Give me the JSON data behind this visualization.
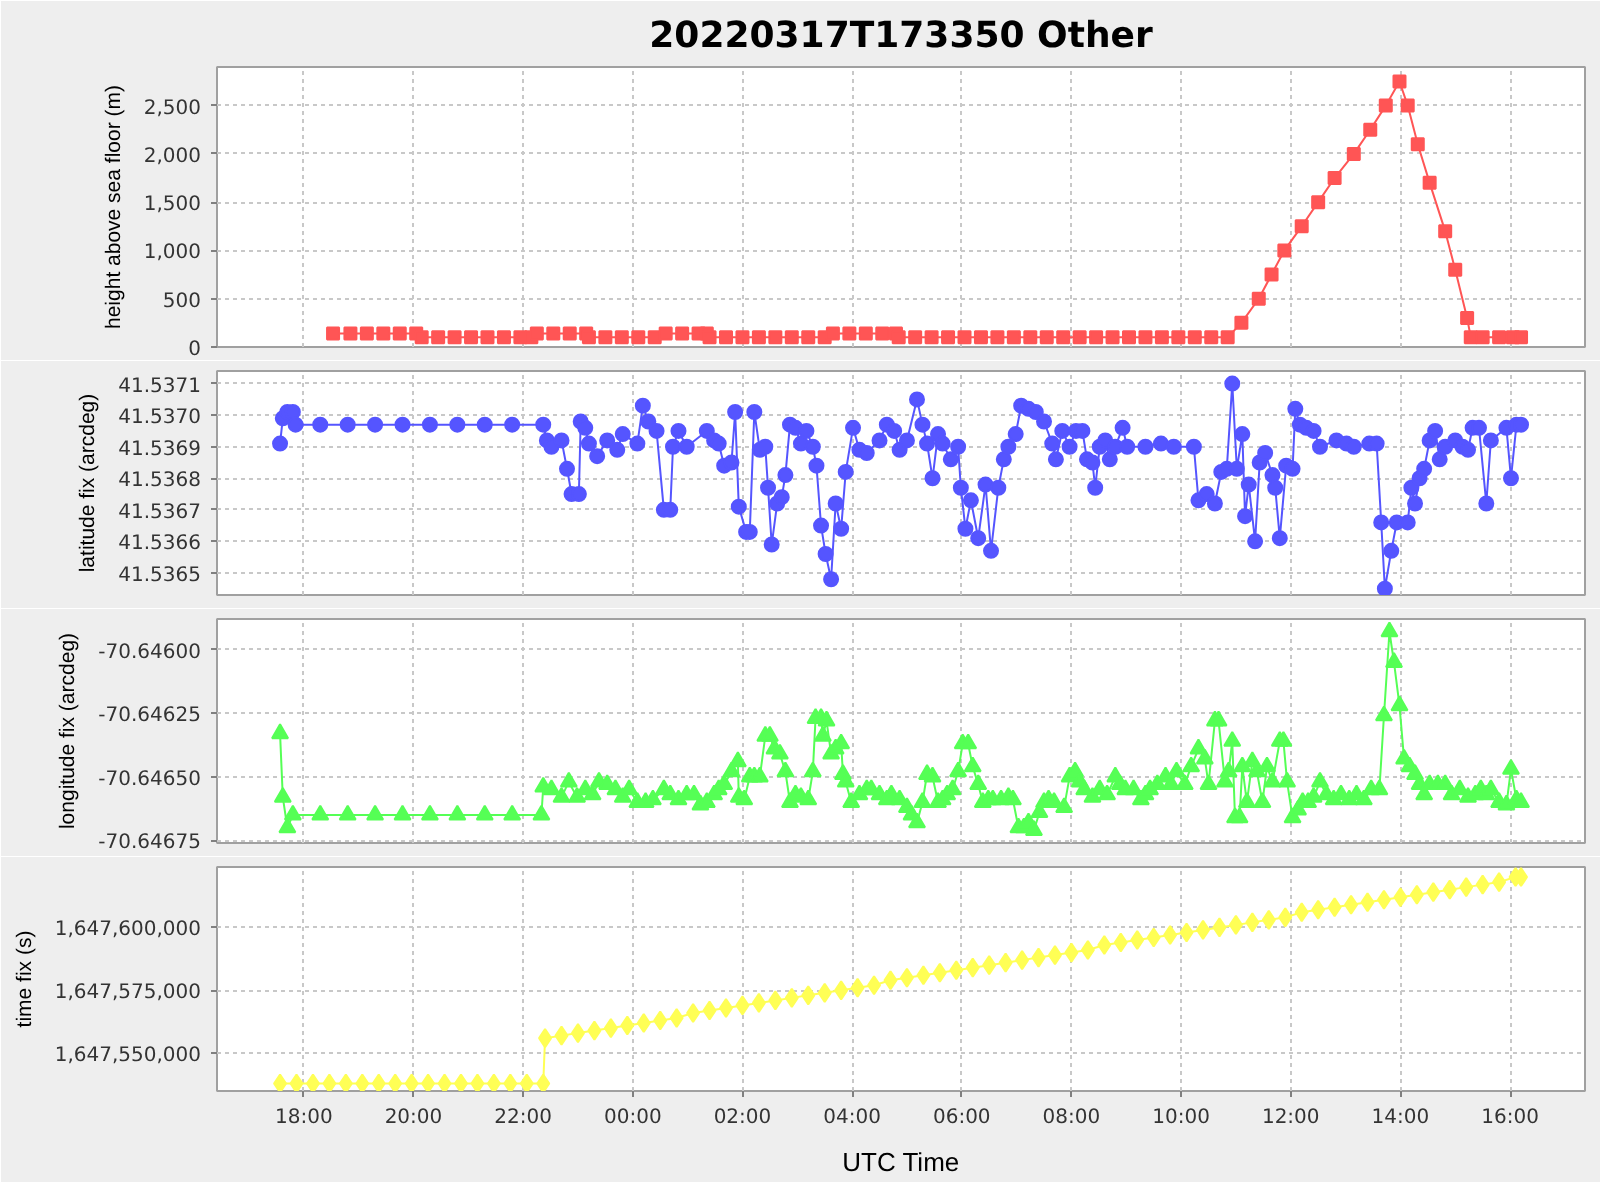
{
  "chart_data": [
    {
      "type": "line",
      "title": "20220317T173350 Other",
      "ylabel": "height above sea floor (m)",
      "tick_labels": "y",
      "grid": true,
      "marker": "square",
      "line_style": "solid",
      "xlim": [
        "2022-03-17T16:25",
        "2022-03-18T17:22"
      ],
      "xticks": [
        {
          "value": "2022-03-17T18:00",
          "label": null
        },
        {
          "value": "2022-03-17T20:00",
          "label": null
        },
        {
          "value": "2022-03-17T22:00",
          "label": null
        },
        {
          "value": "2022-03-18T00:00",
          "label": null
        },
        {
          "value": "2022-03-18T02:00",
          "label": null
        },
        {
          "value": "2022-03-18T04:00",
          "label": null
        },
        {
          "value": "2022-03-18T06:00",
          "label": null
        },
        {
          "value": "2022-03-18T08:00",
          "label": null
        },
        {
          "value": "2022-03-18T10:00",
          "label": null
        },
        {
          "value": "2022-03-18T12:00",
          "label": null
        },
        {
          "value": "2022-03-18T14:00",
          "label": null
        },
        {
          "value": "2022-03-18T16:00",
          "label": null
        }
      ],
      "ylim": [
        0,
        2900
      ],
      "yticks": [
        0,
        500,
        {
          "value": 1000,
          "label": "1,000"
        },
        {
          "value": 1500,
          "label": "1,500"
        },
        {
          "value": 2000,
          "label": "2,000"
        },
        {
          "value": 2500,
          "label": "2,500"
        }
      ],
      "x": [
        "2022-03-17T18:32",
        "2022-03-17T18:51",
        "2022-03-17T19:09",
        "2022-03-17T19:27",
        "2022-03-17T19:45",
        "2022-03-17T20:03",
        "2022-03-17T20:09",
        "2022-03-17T20:27",
        "2022-03-17T20:45",
        "2022-03-17T21:03",
        "2022-03-17T21:21",
        "2022-03-17T21:39",
        "2022-03-17T21:57",
        "2022-03-17T22:09",
        "2022-03-17T22:15",
        "2022-03-17T22:33",
        "2022-03-17T22:51",
        "2022-03-17T23:09",
        "2022-03-17T23:12",
        "2022-03-17T23:30",
        "2022-03-17T23:48",
        "2022-03-18T00:06",
        "2022-03-18T00:24",
        "2022-03-18T00:36",
        "2022-03-18T00:54",
        "2022-03-18T01:12",
        "2022-03-18T01:21",
        "2022-03-18T01:24",
        "2022-03-18T01:42",
        "2022-03-18T02:00",
        "2022-03-18T02:18",
        "2022-03-18T02:36",
        "2022-03-18T02:54",
        "2022-03-18T03:12",
        "2022-03-18T03:30",
        "2022-03-18T03:39",
        "2022-03-18T03:57",
        "2022-03-18T04:15",
        "2022-03-18T04:33",
        "2022-03-18T04:48",
        "2022-03-18T04:51",
        "2022-03-18T05:09",
        "2022-03-18T05:27",
        "2022-03-18T05:45",
        "2022-03-18T06:03",
        "2022-03-18T06:21",
        "2022-03-18T06:39",
        "2022-03-18T06:57",
        "2022-03-18T07:15",
        "2022-03-18T07:33",
        "2022-03-18T07:51",
        "2022-03-18T08:09",
        "2022-03-18T08:27",
        "2022-03-18T08:45",
        "2022-03-18T09:03",
        "2022-03-18T09:21",
        "2022-03-18T09:39",
        "2022-03-18T09:57",
        "2022-03-18T10:15",
        "2022-03-18T10:33",
        "2022-03-18T10:51",
        "2022-03-18T11:06",
        "2022-03-18T11:25",
        "2022-03-18T11:39",
        "2022-03-18T11:53",
        "2022-03-18T12:12",
        "2022-03-18T12:30",
        "2022-03-18T12:48",
        "2022-03-18T13:09",
        "2022-03-18T13:27",
        "2022-03-18T13:44",
        "2022-03-18T13:59",
        "2022-03-18T14:08",
        "2022-03-18T14:19",
        "2022-03-18T14:32",
        "2022-03-18T14:49",
        "2022-03-18T15:00",
        "2022-03-18T15:13",
        "2022-03-18T15:17",
        "2022-03-18T15:30",
        "2022-03-18T15:48",
        "2022-03-18T16:03",
        "2022-03-18T16:12"
      ],
      "series": [
        {
          "color": "#ff5555",
          "values": [
            140,
            140,
            140,
            140,
            140,
            140,
            100,
            100,
            100,
            100,
            100,
            100,
            100,
            100,
            140,
            140,
            140,
            140,
            100,
            100,
            100,
            100,
            100,
            140,
            140,
            140,
            140,
            100,
            100,
            100,
            100,
            100,
            100,
            100,
            100,
            140,
            140,
            140,
            140,
            140,
            100,
            100,
            100,
            100,
            100,
            100,
            100,
            100,
            100,
            100,
            100,
            100,
            100,
            100,
            100,
            100,
            100,
            100,
            100,
            100,
            100,
            250,
            500,
            750,
            1000,
            1250,
            1500,
            1750,
            2000,
            2250,
            2500,
            2750,
            2500,
            2100,
            1700,
            1200,
            800,
            300,
            100,
            100,
            100,
            100,
            100
          ]
        }
      ]
    },
    {
      "type": "line",
      "ylabel": "latitude fix (arcdeg)",
      "tick_labels": "y",
      "grid": true,
      "marker": "circle",
      "line_style": "solid",
      "xlim": [
        "2022-03-17T16:25",
        "2022-03-18T17:22"
      ],
      "xticks": [
        {
          "value": "2022-03-17T18:00",
          "label": null
        },
        {
          "value": "2022-03-17T20:00",
          "label": null
        },
        {
          "value": "2022-03-17T22:00",
          "label": null
        },
        {
          "value": "2022-03-18T00:00",
          "label": null
        },
        {
          "value": "2022-03-18T02:00",
          "label": null
        },
        {
          "value": "2022-03-18T04:00",
          "label": null
        },
        {
          "value": "2022-03-18T06:00",
          "label": null
        },
        {
          "value": "2022-03-18T08:00",
          "label": null
        },
        {
          "value": "2022-03-18T10:00",
          "label": null
        },
        {
          "value": "2022-03-18T12:00",
          "label": null
        },
        {
          "value": "2022-03-18T14:00",
          "label": null
        },
        {
          "value": "2022-03-18T16:00",
          "label": null
        }
      ],
      "ylim": [
        41.53643,
        41.53714
      ],
      "yticks": [
        41.5365,
        41.5366,
        41.5367,
        41.5368,
        41.5369,
        {
          "value": 41.537,
          "label": "41.5370"
        },
        41.5371
      ],
      "x": [
        "2022-03-17T17:34",
        "2022-03-17T17:37",
        "2022-03-17T17:42",
        "2022-03-17T17:48",
        "2022-03-17T17:51",
        "2022-03-17T18:18",
        "2022-03-17T18:48",
        "2022-03-17T19:18",
        "2022-03-17T19:48",
        "2022-03-17T20:18",
        "2022-03-17T20:48",
        "2022-03-17T21:18",
        "2022-03-17T21:48",
        "2022-03-17T22:22",
        "2022-03-17T22:26",
        "2022-03-17T22:31",
        "2022-03-17T22:42",
        "2022-03-17T22:48",
        "2022-03-17T22:53",
        "2022-03-17T23:01",
        "2022-03-17T23:03",
        "2022-03-17T23:08",
        "2022-03-17T23:12",
        "2022-03-17T23:21",
        "2022-03-17T23:32",
        "2022-03-17T23:43",
        "2022-03-17T23:49",
        "2022-03-18T00:05",
        "2022-03-18T00:11",
        "2022-03-18T00:17",
        "2022-03-18T00:26",
        "2022-03-18T00:34",
        "2022-03-18T00:41",
        "2022-03-18T00:44",
        "2022-03-18T00:50",
        "2022-03-18T00:59",
        "2022-03-18T01:21",
        "2022-03-18T01:29",
        "2022-03-18T01:34",
        "2022-03-18T01:40",
        "2022-03-18T01:48",
        "2022-03-18T01:52",
        "2022-03-18T01:56",
        "2022-03-18T02:04",
        "2022-03-18T02:08",
        "2022-03-18T02:13",
        "2022-03-18T02:19",
        "2022-03-18T02:25",
        "2022-03-18T02:28",
        "2022-03-18T02:32",
        "2022-03-18T02:38",
        "2022-03-18T02:43",
        "2022-03-18T02:47",
        "2022-03-18T02:52",
        "2022-03-18T02:58",
        "2022-03-18T03:04",
        "2022-03-18T03:10",
        "2022-03-18T03:17",
        "2022-03-18T03:21",
        "2022-03-18T03:26",
        "2022-03-18T03:31",
        "2022-03-18T03:37",
        "2022-03-18T03:42",
        "2022-03-18T03:48",
        "2022-03-18T03:53",
        "2022-03-18T04:01",
        "2022-03-18T04:08",
        "2022-03-18T04:16",
        "2022-03-18T04:30",
        "2022-03-18T04:38",
        "2022-03-18T04:46",
        "2022-03-18T04:52",
        "2022-03-18T05:00",
        "2022-03-18T05:11",
        "2022-03-18T05:17",
        "2022-03-18T05:22",
        "2022-03-18T05:28",
        "2022-03-18T05:34",
        "2022-03-18T05:39",
        "2022-03-18T05:48",
        "2022-03-18T05:56",
        "2022-03-18T05:59",
        "2022-03-18T06:04",
        "2022-03-18T06:10",
        "2022-03-18T06:18",
        "2022-03-18T06:26",
        "2022-03-18T06:32",
        "2022-03-18T06:40",
        "2022-03-18T06:46",
        "2022-03-18T06:51",
        "2022-03-18T06:59",
        "2022-03-18T07:05",
        "2022-03-18T07:13",
        "2022-03-18T07:21",
        "2022-03-18T07:30",
        "2022-03-18T07:39",
        "2022-03-18T07:43",
        "2022-03-18T07:50",
        "2022-03-18T07:58",
        "2022-03-18T08:05",
        "2022-03-18T08:12",
        "2022-03-18T08:17",
        "2022-03-18T08:23",
        "2022-03-18T08:26",
        "2022-03-18T08:31",
        "2022-03-18T08:37",
        "2022-03-18T08:42",
        "2022-03-18T08:48",
        "2022-03-18T08:56",
        "2022-03-18T09:01",
        "2022-03-18T09:21",
        "2022-03-18T09:38",
        "2022-03-18T09:52",
        "2022-03-18T10:14",
        "2022-03-18T10:19",
        "2022-03-18T10:28",
        "2022-03-18T10:37",
        "2022-03-18T10:44",
        "2022-03-18T10:50",
        "2022-03-18T10:56",
        "2022-03-18T11:01",
        "2022-03-18T11:07",
        "2022-03-18T11:10",
        "2022-03-18T11:14",
        "2022-03-18T11:21",
        "2022-03-18T11:26",
        "2022-03-18T11:32",
        "2022-03-18T11:40",
        "2022-03-18T11:43",
        "2022-03-18T11:48",
        "2022-03-18T11:55",
        "2022-03-18T12:02",
        "2022-03-18T12:05",
        "2022-03-18T12:10",
        "2022-03-18T12:17",
        "2022-03-18T12:25",
        "2022-03-18T12:32",
        "2022-03-18T12:50",
        "2022-03-18T13:01",
        "2022-03-18T13:09",
        "2022-03-18T13:26",
        "2022-03-18T13:34",
        "2022-03-18T13:39",
        "2022-03-18T13:43",
        "2022-03-18T13:50",
        "2022-03-18T13:56",
        "2022-03-18T14:08",
        "2022-03-18T14:12",
        "2022-03-18T14:16",
        "2022-03-18T14:21",
        "2022-03-18T14:26",
        "2022-03-18T14:32",
        "2022-03-18T14:38",
        "2022-03-18T14:43",
        "2022-03-18T14:49",
        "2022-03-18T15:00",
        "2022-03-18T15:08",
        "2022-03-18T15:14",
        "2022-03-18T15:19",
        "2022-03-18T15:26",
        "2022-03-18T15:34",
        "2022-03-18T15:39",
        "2022-03-18T15:56",
        "2022-03-18T16:01",
        "2022-03-18T16:07",
        "2022-03-18T16:12"
      ],
      "series": [
        {
          "color": "#5555ff",
          "values": [
            41.53691,
            41.53699,
            41.53701,
            41.53701,
            41.53697,
            41.53697,
            41.53697,
            41.53697,
            41.53697,
            41.53697,
            41.53697,
            41.53697,
            41.53697,
            41.53697,
            41.53692,
            41.5369,
            41.53692,
            41.53683,
            41.53675,
            41.53675,
            41.53698,
            41.53696,
            41.53691,
            41.53687,
            41.53692,
            41.53689,
            41.53694,
            41.53691,
            41.53703,
            41.53698,
            41.53695,
            41.5367,
            41.5367,
            41.5369,
            41.53695,
            41.5369,
            41.53695,
            41.53692,
            41.53691,
            41.53684,
            41.53685,
            41.53701,
            41.53671,
            41.53663,
            41.53663,
            41.53701,
            41.53689,
            41.5369,
            41.53677,
            41.53659,
            41.53672,
            41.53674,
            41.53681,
            41.53697,
            41.53696,
            41.53691,
            41.53695,
            41.5369,
            41.53684,
            41.53665,
            41.53656,
            41.53648,
            41.53672,
            41.53664,
            41.53682,
            41.53696,
            41.53689,
            41.53688,
            41.53692,
            41.53697,
            41.53695,
            41.53689,
            41.53692,
            41.53705,
            41.53697,
            41.53691,
            41.5368,
            41.53694,
            41.53691,
            41.53686,
            41.5369,
            41.53677,
            41.53664,
            41.53673,
            41.53661,
            41.53678,
            41.53657,
            41.53677,
            41.53686,
            41.5369,
            41.53694,
            41.53703,
            41.53702,
            41.53701,
            41.53698,
            41.53691,
            41.53686,
            41.53695,
            41.5369,
            41.53695,
            41.53695,
            41.53686,
            41.53685,
            41.53677,
            41.5369,
            41.53692,
            41.53686,
            41.5369,
            41.53696,
            41.5369,
            41.5369,
            41.53691,
            41.5369,
            41.5369,
            41.53673,
            41.53675,
            41.53672,
            41.53682,
            41.53683,
            41.5371,
            41.53683,
            41.53694,
            41.53668,
            41.53678,
            41.5366,
            41.53685,
            41.53688,
            41.53681,
            41.53677,
            41.53661,
            41.53684,
            41.53683,
            41.53702,
            41.53697,
            41.53696,
            41.53695,
            41.5369,
            41.53692,
            41.53691,
            41.5369,
            41.53691,
            41.53691,
            41.53666,
            41.53645,
            41.53657,
            41.53666,
            41.53666,
            41.53677,
            41.53672,
            41.5368,
            41.53683,
            41.53692,
            41.53695,
            41.53686,
            41.5369,
            41.53692,
            41.5369,
            41.53689,
            41.53696,
            41.53696,
            41.53672,
            41.53692,
            41.53696,
            41.5368,
            41.53697,
            41.53697
          ]
        }
      ]
    },
    {
      "type": "line",
      "ylabel": "longitude fix (arcdeg)",
      "tick_labels": "y",
      "grid": true,
      "marker": "triangle",
      "line_style": "solid",
      "xlim": [
        "2022-03-17T16:25",
        "2022-03-18T17:22"
      ],
      "xticks": [
        {
          "value": "2022-03-17T18:00",
          "label": null
        },
        {
          "value": "2022-03-17T20:00",
          "label": null
        },
        {
          "value": "2022-03-17T22:00",
          "label": null
        },
        {
          "value": "2022-03-18T00:00",
          "label": null
        },
        {
          "value": "2022-03-18T02:00",
          "label": null
        },
        {
          "value": "2022-03-18T04:00",
          "label": null
        },
        {
          "value": "2022-03-18T06:00",
          "label": null
        },
        {
          "value": "2022-03-18T08:00",
          "label": null
        },
        {
          "value": "2022-03-18T10:00",
          "label": null
        },
        {
          "value": "2022-03-18T12:00",
          "label": null
        },
        {
          "value": "2022-03-18T14:00",
          "label": null
        },
        {
          "value": "2022-03-18T16:00",
          "label": null
        }
      ],
      "ylim": [
        -70.64676,
        -70.64588
      ],
      "yticks": [
        {
          "value": -70.64675,
          "label": "-70.64675"
        },
        {
          "value": -70.6465,
          "label": "-70.64650"
        },
        {
          "value": -70.64625,
          "label": "-70.64625"
        },
        {
          "value": -70.646,
          "label": "-70.64600"
        }
      ],
      "x": [
        "2022-03-17T17:34",
        "2022-03-17T17:37",
        "2022-03-17T17:42",
        "2022-03-17T17:48",
        "2022-03-17T18:18",
        "2022-03-17T18:48",
        "2022-03-17T19:18",
        "2022-03-17T19:48",
        "2022-03-17T20:18",
        "2022-03-17T20:48",
        "2022-03-17T21:18",
        "2022-03-17T21:48",
        "2022-03-17T22:20",
        "2022-03-17T22:22",
        "2022-03-17T22:31",
        "2022-03-17T22:42",
        "2022-03-17T22:50",
        "2022-03-17T22:59",
        "2022-03-17T23:08",
        "2022-03-17T23:16",
        "2022-03-17T23:23",
        "2022-03-17T23:32",
        "2022-03-17T23:41",
        "2022-03-17T23:49",
        "2022-03-17T23:56",
        "2022-03-18T00:05",
        "2022-03-18T00:14",
        "2022-03-18T00:22",
        "2022-03-18T00:34",
        "2022-03-18T00:41",
        "2022-03-18T00:50",
        "2022-03-18T00:59",
        "2022-03-18T01:07",
        "2022-03-18T01:14",
        "2022-03-18T01:21",
        "2022-03-18T01:29",
        "2022-03-18T01:34",
        "2022-03-18T01:40",
        "2022-03-18T01:48",
        "2022-03-18T01:55",
        "2022-03-18T01:56",
        "2022-03-18T02:02",
        "2022-03-18T02:08",
        "2022-03-18T02:13",
        "2022-03-18T02:19",
        "2022-03-18T02:25",
        "2022-03-18T02:30",
        "2022-03-18T02:35",
        "2022-03-18T02:41",
        "2022-03-18T02:47",
        "2022-03-18T02:52",
        "2022-03-18T02:58",
        "2022-03-18T03:04",
        "2022-03-18T03:12",
        "2022-03-18T03:17",
        "2022-03-18T03:20",
        "2022-03-18T03:26",
        "2022-03-18T03:28",
        "2022-03-18T03:32",
        "2022-03-18T03:37",
        "2022-03-18T03:42",
        "2022-03-18T03:48",
        "2022-03-18T03:50",
        "2022-03-18T03:53",
        "2022-03-18T03:59",
        "2022-03-18T04:08",
        "2022-03-18T04:16",
        "2022-03-18T04:21",
        "2022-03-18T04:30",
        "2022-03-18T04:38",
        "2022-03-18T04:43",
        "2022-03-18T04:52",
        "2022-03-18T05:00",
        "2022-03-18T05:05",
        "2022-03-18T05:11",
        "2022-03-18T05:17",
        "2022-03-18T05:22",
        "2022-03-18T05:28",
        "2022-03-18T05:34",
        "2022-03-18T05:39",
        "2022-03-18T05:44",
        "2022-03-18T05:50",
        "2022-03-18T05:56",
        "2022-03-18T06:01",
        "2022-03-18T06:07",
        "2022-03-18T06:12",
        "2022-03-18T06:18",
        "2022-03-18T06:23",
        "2022-03-18T06:29",
        "2022-03-18T06:34",
        "2022-03-18T06:43",
        "2022-03-18T06:51",
        "2022-03-18T06:56",
        "2022-03-18T07:02",
        "2022-03-18T07:08",
        "2022-03-18T07:13",
        "2022-03-18T07:19",
        "2022-03-18T07:25",
        "2022-03-18T07:30",
        "2022-03-18T07:35",
        "2022-03-18T07:41",
        "2022-03-18T07:52",
        "2022-03-18T07:58",
        "2022-03-18T08:04",
        "2022-03-18T08:09",
        "2022-03-18T08:14",
        "2022-03-18T08:23",
        "2022-03-18T08:31",
        "2022-03-18T08:39",
        "2022-03-18T08:48",
        "2022-03-18T08:53",
        "2022-03-18T08:59",
        "2022-03-18T09:08",
        "2022-03-18T09:16",
        "2022-03-18T09:21",
        "2022-03-18T09:26",
        "2022-03-18T09:34",
        "2022-03-18T09:43",
        "2022-03-18T09:49",
        "2022-03-18T09:55",
        "2022-03-18T10:04",
        "2022-03-18T10:11",
        "2022-03-18T10:19",
        "2022-03-18T10:26",
        "2022-03-18T10:30",
        "2022-03-18T10:37",
        "2022-03-18T10:41",
        "2022-03-18T10:48",
        "2022-03-18T10:52",
        "2022-03-18T10:56",
        "2022-03-18T10:59",
        "2022-03-18T11:04",
        "2022-03-18T11:07",
        "2022-03-18T11:12",
        "2022-03-18T11:18",
        "2022-03-18T11:23",
        "2022-03-18T11:29",
        "2022-03-18T11:34",
        "2022-03-18T11:40",
        "2022-03-18T11:48",
        "2022-03-18T11:52",
        "2022-03-18T11:56",
        "2022-03-18T12:02",
        "2022-03-18T12:08",
        "2022-03-18T12:13",
        "2022-03-18T12:19",
        "2022-03-18T12:25",
        "2022-03-18T12:32",
        "2022-03-18T12:39",
        "2022-03-18T12:47",
        "2022-03-18T12:55",
        "2022-03-18T13:04",
        "2022-03-18T13:12",
        "2022-03-18T13:20",
        "2022-03-18T13:28",
        "2022-03-18T13:37",
        "2022-03-18T13:42",
        "2022-03-18T13:48",
        "2022-03-18T13:53",
        "2022-03-18T13:59",
        "2022-03-18T14:04",
        "2022-03-18T14:10",
        "2022-03-18T14:16",
        "2022-03-18T14:21",
        "2022-03-18T14:26",
        "2022-03-18T14:32",
        "2022-03-18T14:41",
        "2022-03-18T14:49",
        "2022-03-18T14:56",
        "2022-03-18T15:05",
        "2022-03-18T15:14",
        "2022-03-18T15:22",
        "2022-03-18T15:28",
        "2022-03-18T15:34",
        "2022-03-18T15:39",
        "2022-03-18T15:48",
        "2022-03-18T15:56",
        "2022-03-18T16:01",
        "2022-03-18T16:07",
        "2022-03-18T16:12"
      ],
      "series": [
        {
          "color": "#55ff55",
          "values": [
            -70.64633,
            -70.64658,
            -70.6467,
            -70.64665,
            -70.64665,
            -70.64665,
            -70.64665,
            -70.64665,
            -70.64665,
            -70.64665,
            -70.64665,
            -70.64665,
            -70.64665,
            -70.64654,
            -70.64655,
            -70.64658,
            -70.64652,
            -70.64658,
            -70.64655,
            -70.64657,
            -70.64652,
            -70.64653,
            -70.64655,
            -70.64658,
            -70.64655,
            -70.6466,
            -70.6466,
            -70.64659,
            -70.64655,
            -70.64657,
            -70.64659,
            -70.64657,
            -70.64657,
            -70.64661,
            -70.6466,
            -70.64657,
            -70.64655,
            -70.64653,
            -70.64648,
            -70.64644,
            -70.64658,
            -70.64659,
            -70.6465,
            -70.6465,
            -70.6465,
            -70.64634,
            -70.64634,
            -70.64639,
            -70.64641,
            -70.64648,
            -70.6466,
            -70.64657,
            -70.64658,
            -70.64659,
            -70.64648,
            -70.64627,
            -70.64627,
            -70.64634,
            -70.64628,
            -70.64641,
            -70.64639,
            -70.64637,
            -70.64649,
            -70.64652,
            -70.6466,
            -70.64657,
            -70.64655,
            -70.64655,
            -70.64657,
            -70.64659,
            -70.64657,
            -70.64659,
            -70.64662,
            -70.64665,
            -70.64668,
            -70.6466,
            -70.64649,
            -70.6465,
            -70.6466,
            -70.64659,
            -70.64657,
            -70.64655,
            -70.64648,
            -70.64637,
            -70.64637,
            -70.64646,
            -70.64653,
            -70.6466,
            -70.64659,
            -70.64659,
            -70.64659,
            -70.64658,
            -70.64659,
            -70.6467,
            -70.6467,
            -70.64668,
            -70.64671,
            -70.64664,
            -70.6466,
            -70.64659,
            -70.6466,
            -70.64662,
            -70.6465,
            -70.64648,
            -70.64652,
            -70.64655,
            -70.64658,
            -70.64655,
            -70.64657,
            -70.6465,
            -70.64653,
            -70.64655,
            -70.64655,
            -70.64659,
            -70.64657,
            -70.64655,
            -70.64653,
            -70.6465,
            -70.64653,
            -70.64648,
            -70.64653,
            -70.64646,
            -70.64639,
            -70.64643,
            -70.64653,
            -70.64628,
            -70.64628,
            -70.64652,
            -70.64648,
            -70.64636,
            -70.64666,
            -70.64666,
            -70.64646,
            -70.6466,
            -70.64644,
            -70.64648,
            -70.6466,
            -70.64646,
            -70.64652,
            -70.64636,
            -70.64636,
            -70.64652,
            -70.64666,
            -70.64663,
            -70.6466,
            -70.6466,
            -70.64658,
            -70.64652,
            -70.64657,
            -70.64659,
            -70.64657,
            -70.64659,
            -70.64657,
            -70.64659,
            -70.64655,
            -70.64655,
            -70.64626,
            -70.64593,
            -70.64605,
            -70.64622,
            -70.64643,
            -70.64646,
            -70.64649,
            -70.64653,
            -70.64657,
            -70.64653,
            -70.64653,
            -70.64653,
            -70.64657,
            -70.64655,
            -70.64658,
            -70.64657,
            -70.64655,
            -70.64657,
            -70.64655,
            -70.6466,
            -70.64661,
            -70.64647,
            -70.64659,
            -70.6466
          ]
        }
      ]
    },
    {
      "type": "line",
      "ylabel": "time fix (s)",
      "xlabel": "UTC Time",
      "grid": true,
      "marker": "diamond",
      "line_style": "solid",
      "xlim": [
        "2022-03-17T16:25",
        "2022-03-18T17:22"
      ],
      "xticks": [
        {
          "value": "2022-03-17T18:00",
          "label": "18:00"
        },
        {
          "value": "2022-03-17T20:00",
          "label": "20:00"
        },
        {
          "value": "2022-03-17T22:00",
          "label": "22:00"
        },
        {
          "value": "2022-03-18T00:00",
          "label": "00:00"
        },
        {
          "value": "2022-03-18T02:00",
          "label": "02:00"
        },
        {
          "value": "2022-03-18T04:00",
          "label": "04:00"
        },
        {
          "value": "2022-03-18T06:00",
          "label": "06:00"
        },
        {
          "value": "2022-03-18T08:00",
          "label": "08:00"
        },
        {
          "value": "2022-03-18T10:00",
          "label": "10:00"
        },
        {
          "value": "2022-03-18T12:00",
          "label": "12:00"
        },
        {
          "value": "2022-03-18T14:00",
          "label": "14:00"
        },
        {
          "value": "2022-03-18T16:00",
          "label": "16:00"
        }
      ],
      "ylim": [
        1647535000,
        1647624000
      ],
      "yticks": [
        {
          "value": 1647550000,
          "label": "1,647,550,000"
        },
        {
          "value": 1647575000,
          "label": "1,647,575,000"
        },
        {
          "value": 1647600000,
          "label": "1,647,600,000"
        }
      ],
      "x": [
        "2022-03-17T17:34",
        "2022-03-17T17:52",
        "2022-03-17T18:10",
        "2022-03-17T18:28",
        "2022-03-17T18:46",
        "2022-03-17T19:04",
        "2022-03-17T19:22",
        "2022-03-17T19:40",
        "2022-03-17T19:58",
        "2022-03-17T20:16",
        "2022-03-17T20:34",
        "2022-03-17T20:52",
        "2022-03-17T21:10",
        "2022-03-17T21:28",
        "2022-03-17T21:46",
        "2022-03-17T22:04",
        "2022-03-17T22:22",
        "2022-03-17T22:24",
        "2022-03-17T22:42",
        "2022-03-17T23:00",
        "2022-03-17T23:18",
        "2022-03-17T23:36",
        "2022-03-17T23:54",
        "2022-03-18T00:12",
        "2022-03-18T00:30",
        "2022-03-18T00:48",
        "2022-03-18T01:06",
        "2022-03-18T01:24",
        "2022-03-18T01:42",
        "2022-03-18T02:00",
        "2022-03-18T02:18",
        "2022-03-18T02:36",
        "2022-03-18T02:54",
        "2022-03-18T03:12",
        "2022-03-18T03:30",
        "2022-03-18T03:48",
        "2022-03-18T04:06",
        "2022-03-18T04:24",
        "2022-03-18T04:42",
        "2022-03-18T05:00",
        "2022-03-18T05:18",
        "2022-03-18T05:36",
        "2022-03-18T05:54",
        "2022-03-18T06:12",
        "2022-03-18T06:30",
        "2022-03-18T06:48",
        "2022-03-18T07:06",
        "2022-03-18T07:24",
        "2022-03-18T07:42",
        "2022-03-18T08:00",
        "2022-03-18T08:18",
        "2022-03-18T08:36",
        "2022-03-18T08:54",
        "2022-03-18T09:12",
        "2022-03-18T09:30",
        "2022-03-18T09:48",
        "2022-03-18T10:06",
        "2022-03-18T10:24",
        "2022-03-18T10:42",
        "2022-03-18T11:00",
        "2022-03-18T11:18",
        "2022-03-18T11:36",
        "2022-03-18T11:54",
        "2022-03-18T12:12",
        "2022-03-18T12:30",
        "2022-03-18T12:48",
        "2022-03-18T13:06",
        "2022-03-18T13:24",
        "2022-03-18T13:42",
        "2022-03-18T14:00",
        "2022-03-18T14:18",
        "2022-03-18T14:36",
        "2022-03-18T14:54",
        "2022-03-18T15:12",
        "2022-03-18T15:30",
        "2022-03-18T15:48",
        "2022-03-18T16:06",
        "2022-03-18T16:12"
      ],
      "series": [
        {
          "color": "#ffff55",
          "values": [
            1647538000,
            1647538000,
            1647538000,
            1647538000,
            1647538000,
            1647538000,
            1647538000,
            1647538000,
            1647538000,
            1647538000,
            1647538000,
            1647538000,
            1647538000,
            1647538000,
            1647538000,
            1647538000,
            1647538000,
            1647556000,
            1647557000,
            1647558000,
            1647559000,
            1647560000,
            1647561000,
            1647562000,
            1647563000,
            1647564000,
            1647566000,
            1647567000,
            1647568000,
            1647569000,
            1647570000,
            1647571000,
            1647572000,
            1647573000,
            1647574000,
            1647575000,
            1647576000,
            1647577000,
            1647579000,
            1647580000,
            1647581000,
            1647582000,
            1647583000,
            1647584000,
            1647585000,
            1647586000,
            1647587000,
            1647588000,
            1647589000,
            1647590000,
            1647591000,
            1647593000,
            1647594000,
            1647595000,
            1647596000,
            1647597000,
            1647598000,
            1647599000,
            1647600000,
            1647601000,
            1647602000,
            1647603000,
            1647604000,
            1647606000,
            1647607000,
            1647608000,
            1647609000,
            1647610000,
            1647611000,
            1647612000,
            1647613000,
            1647614000,
            1647615000,
            1647616000,
            1647617000,
            1647618000,
            1647620000,
            1647620000
          ]
        }
      ]
    }
  ]
}
